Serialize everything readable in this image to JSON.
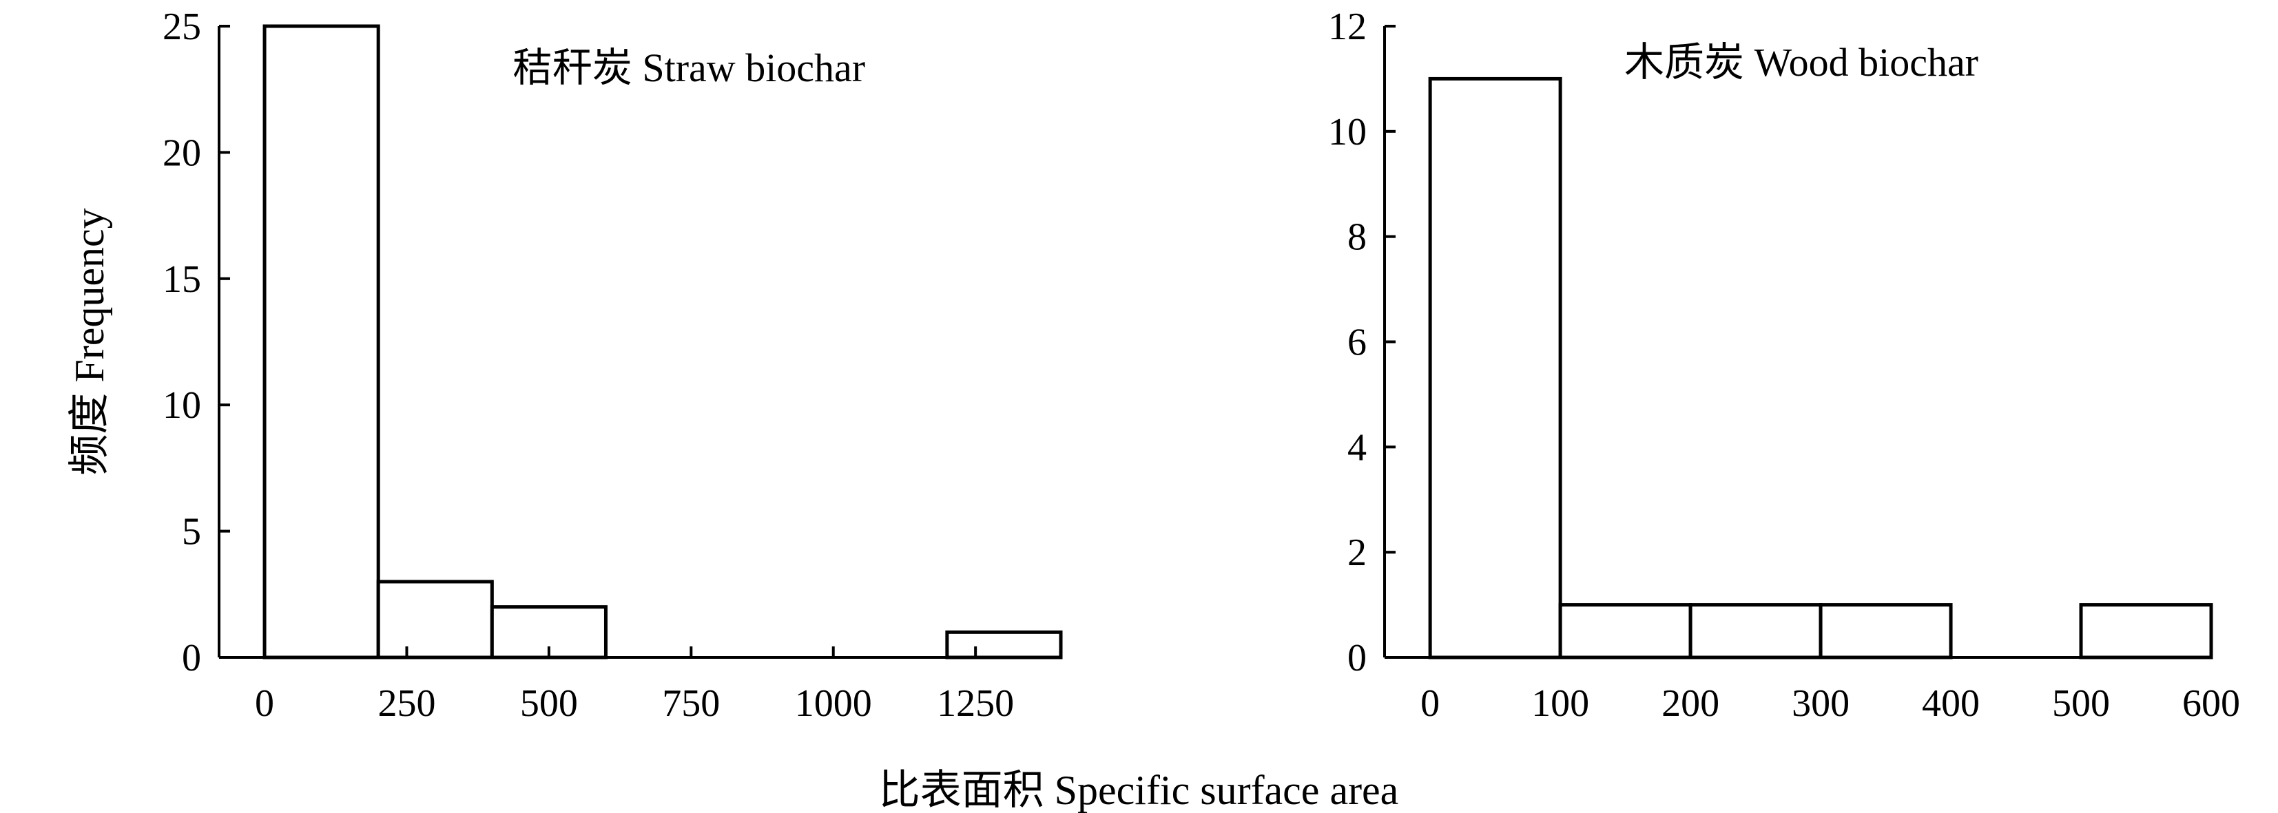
{
  "chart_data": [
    {
      "type": "bar",
      "title": "秸秆炭 Straw biochar",
      "ylabel": "频度 Frequency",
      "xlabel": "",
      "bin_edges": [
        0,
        200,
        400,
        600,
        800,
        1000,
        1200,
        1400
      ],
      "values": [
        25,
        3,
        2,
        0,
        0,
        0,
        1
      ],
      "xticks": [
        0,
        250,
        500,
        750,
        1000,
        1250
      ],
      "yticks": [
        0,
        5,
        10,
        15,
        20,
        25
      ],
      "xlim": [
        -80,
        1400
      ],
      "ylim": [
        0,
        25
      ],
      "grid": false
    },
    {
      "type": "bar",
      "title": "木质炭 Wood biochar",
      "ylabel": "",
      "xlabel": "",
      "bin_edges": [
        0,
        100,
        200,
        300,
        400,
        500,
        600
      ],
      "values": [
        11,
        1,
        1,
        1,
        0,
        1
      ],
      "xticks": [
        0,
        100,
        200,
        300,
        400,
        500,
        600
      ],
      "yticks": [
        0,
        2,
        4,
        6,
        8,
        10,
        12
      ],
      "xlim": [
        -35,
        600
      ],
      "ylim": [
        0,
        12
      ],
      "grid": false
    }
  ],
  "shared_xlabel": "比表面积 Specific surface area"
}
